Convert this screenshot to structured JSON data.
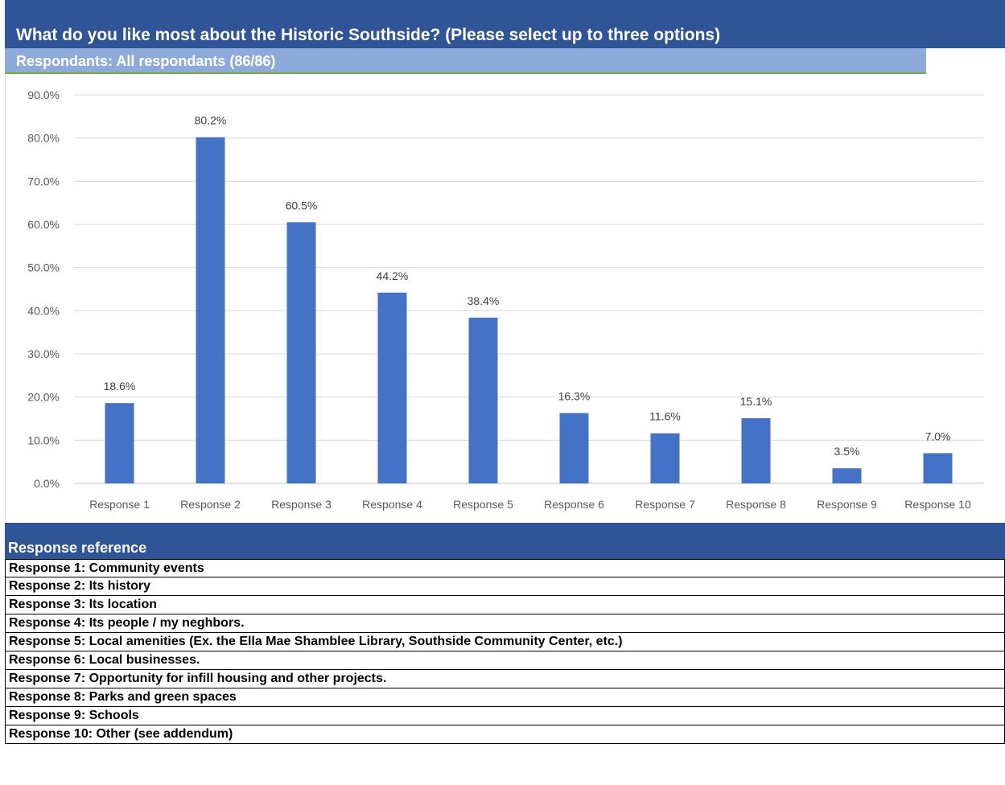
{
  "header": {
    "title": "What do you like most about the Historic Southside? (Please select up to three options)",
    "subtitle": "Respondants: All respondants (86/86)"
  },
  "colors": {
    "header_bg": "#2f5597",
    "subheader_bg": "#8eaadb",
    "bar": "#4472c4",
    "gridline": "#d9d9d9"
  },
  "chart_data": {
    "type": "bar",
    "categories": [
      "Response 1",
      "Response 2",
      "Response 3",
      "Response 4",
      "Response 5",
      "Response 6",
      "Response 7",
      "Response 8",
      "Response 9",
      "Response 10"
    ],
    "values": [
      18.6,
      80.2,
      60.5,
      44.2,
      38.4,
      16.3,
      11.6,
      15.1,
      3.5,
      7.0
    ],
    "data_labels": [
      "18.6%",
      "80.2%",
      "60.5%",
      "44.2%",
      "38.4%",
      "16.3%",
      "11.6%",
      "15.1%",
      "3.5%",
      "7.0%"
    ],
    "yticks": [
      "0.0%",
      "10.0%",
      "20.0%",
      "30.0%",
      "40.0%",
      "50.0%",
      "60.0%",
      "70.0%",
      "80.0%",
      "90.0%"
    ],
    "ylim": [
      0,
      90
    ],
    "grid": true,
    "legend": "none"
  },
  "reference": {
    "header": "Response reference",
    "items": [
      "Response 1: Community events",
      "Response 2: Its history",
      "Response 3: Its location",
      "Response 4: Its people / my neghbors.",
      "Response 5: Local amenities (Ex. the Ella Mae Shamblee Library, Southside Community Center, etc.)",
      "Response 6: Local businesses.",
      "Response 7: Opportunity for infill housing and other projects.",
      "Response 8: Parks and green spaces",
      "Response 9: Schools",
      "Response 10: Other (see addendum)"
    ]
  }
}
